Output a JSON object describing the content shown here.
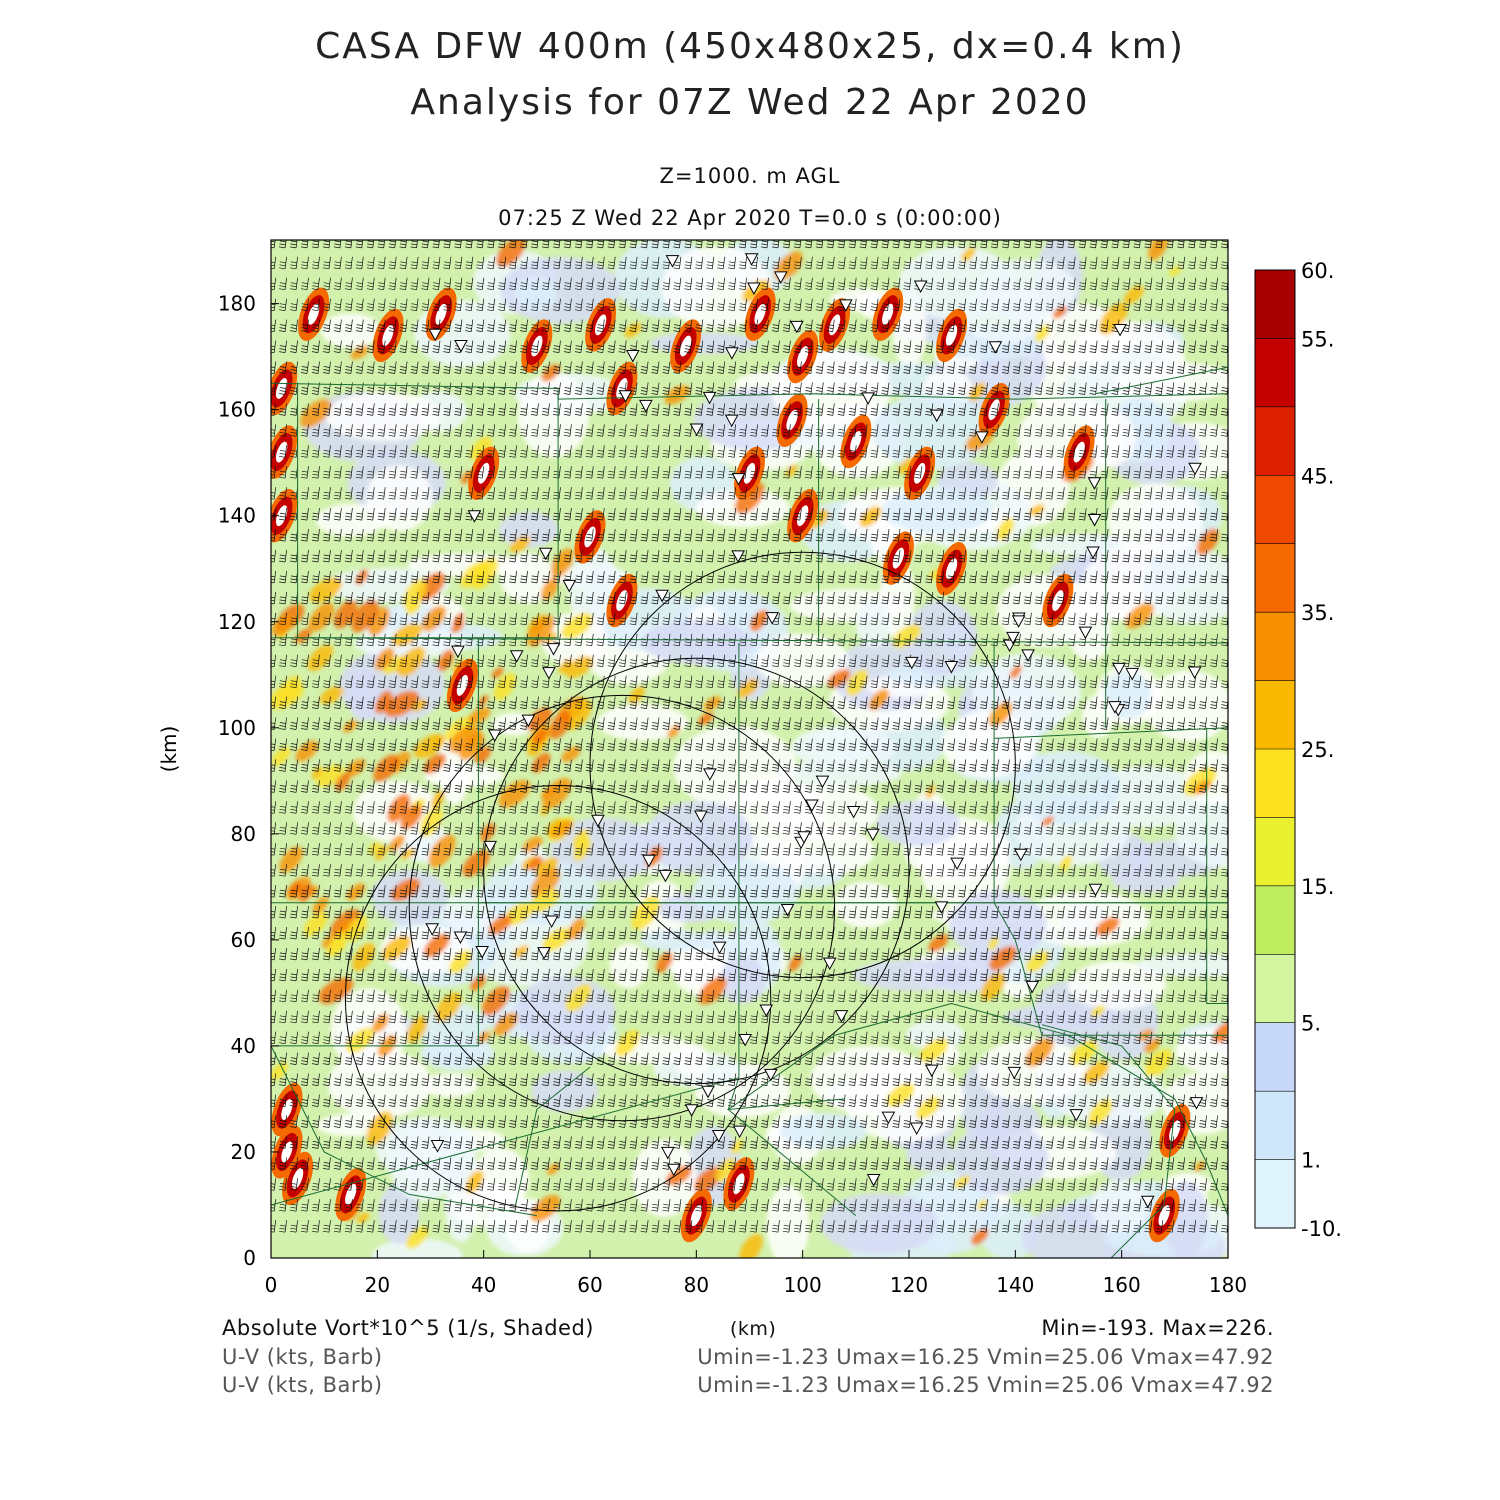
{
  "title": {
    "line1": "CASA DFW 400m (450x480x25, dx=0.4 km)",
    "line2": "Analysis for 07Z Wed 22 Apr 2020"
  },
  "subtitle": {
    "level": "Z=1000. m AGL",
    "time": "07:25 Z Wed 22 Apr 2020   T=0.0 s (0:00:00)"
  },
  "axes": {
    "ylabel": "(km)",
    "xlabel": "(km)",
    "xticks": [
      "0",
      "20",
      "40",
      "60",
      "80",
      "100",
      "120",
      "140",
      "160",
      "180"
    ],
    "yticks": [
      "0",
      "20",
      "40",
      "60",
      "80",
      "100",
      "120",
      "140",
      "160",
      "180"
    ]
  },
  "colorbar": {
    "labels": [
      "60.",
      "55.",
      "45.",
      "35.",
      "25.",
      "15.",
      "5.",
      "1.",
      "-10."
    ],
    "colors": [
      "#a80000",
      "#c40000",
      "#dc2000",
      "#ef4800",
      "#f46a00",
      "#f79000",
      "#fbb800",
      "#fde020",
      "#e8f030",
      "#c0ec60",
      "#d4f5a0",
      "#c8d8f8",
      "#cfe6fb",
      "#dff3fd"
    ]
  },
  "footer": {
    "field": "Absolute Vort*10^5 (1/s, Shaded)",
    "units": "(km)",
    "minmax": "Min=-193. Max=226.",
    "barb1": "U-V (kts, Barb)",
    "barb2": "U-V (kts, Barb)",
    "stats1": "Umin=-1.23 Umax=16.25 Vmin=25.06 Vmax=47.92",
    "stats2": "Umin=-1.23 Umax=16.25 Vmin=25.06 Vmax=47.92"
  },
  "chart_data": {
    "type": "heatmap",
    "title": "CASA DFW 400m (450x480x25, dx=0.4 km)",
    "xlabel": "(km)",
    "ylabel": "(km)",
    "xlim": [
      0,
      180
    ],
    "ylim": [
      0,
      192
    ],
    "field_min": -193,
    "field_max": 226,
    "contour_levels": [
      -10,
      1,
      5,
      15,
      25,
      35,
      45,
      55,
      60
    ],
    "radar_range_rings_center_km": [
      [
        54,
        49
      ],
      [
        80,
        73
      ],
      [
        100,
        93
      ],
      [
        66,
        66
      ]
    ],
    "vortex_centers_km": [
      [
        3,
        28
      ],
      [
        3,
        20
      ],
      [
        5,
        15
      ],
      [
        15,
        12
      ],
      [
        2,
        140
      ],
      [
        2,
        152
      ],
      [
        2,
        164
      ],
      [
        8,
        178
      ],
      [
        22,
        174
      ],
      [
        32,
        178
      ],
      [
        50,
        172
      ],
      [
        62,
        176
      ],
      [
        66,
        164
      ],
      [
        78,
        172
      ],
      [
        92,
        178
      ],
      [
        100,
        170
      ],
      [
        106,
        176
      ],
      [
        116,
        178
      ],
      [
        128,
        174
      ],
      [
        98,
        158
      ],
      [
        110,
        154
      ],
      [
        122,
        148
      ],
      [
        136,
        160
      ],
      [
        90,
        148
      ],
      [
        100,
        140
      ],
      [
        118,
        132
      ],
      [
        128,
        130
      ],
      [
        60,
        136
      ],
      [
        40,
        148
      ],
      [
        152,
        152
      ],
      [
        148,
        124
      ],
      [
        170,
        24
      ],
      [
        168,
        8
      ],
      [
        80,
        8
      ],
      [
        88,
        14
      ],
      [
        36,
        108
      ],
      [
        66,
        124
      ]
    ]
  }
}
